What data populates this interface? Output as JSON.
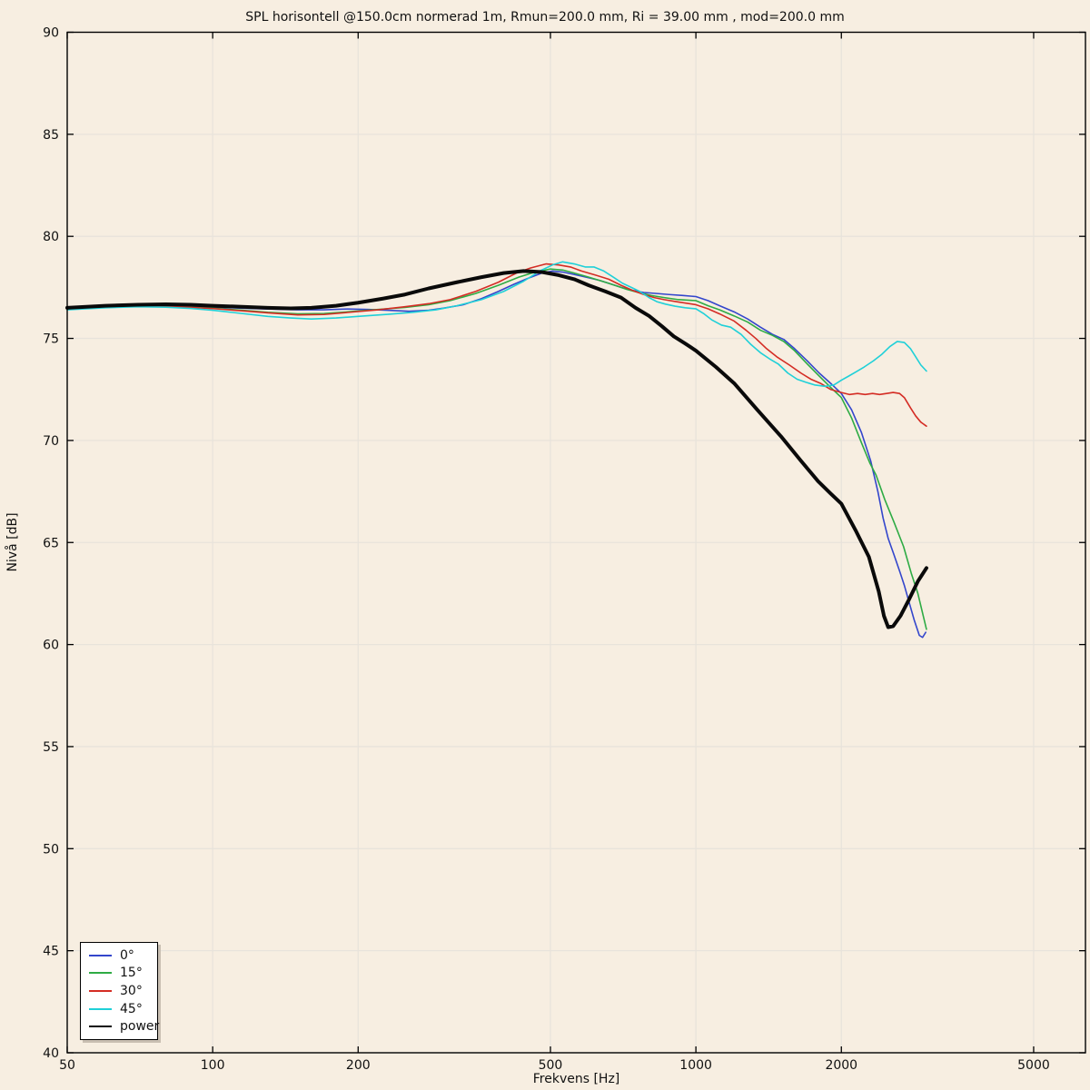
{
  "figure": {
    "background": "#f7eee1",
    "grid_color": "#e8e3db",
    "axis_color": "#000000",
    "text_color": "#111111",
    "legend_background": "#ffffff"
  },
  "chart_data": {
    "type": "line",
    "title": "SPL horisontell @150.0cm normerad 1m, Rmun=200.0 mm, Ri = 39.00 mm , mod=200.0 mm",
    "xlabel": "Frekvens [Hz]",
    "ylabel": "Nivå [dB]",
    "x_scale": "log",
    "xlim": [
      50,
      6400
    ],
    "ylim": [
      40,
      90
    ],
    "x_ticks": [
      50,
      100,
      200,
      500,
      1000,
      2000,
      5000
    ],
    "y_ticks": [
      40,
      45,
      50,
      55,
      60,
      65,
      70,
      75,
      80,
      85,
      90
    ],
    "grid": true,
    "legend_position": "lower left",
    "series": [
      {
        "name": "0°",
        "slug": "0deg",
        "color": "#3346cc",
        "width": 1.6,
        "points": [
          [
            50,
            76.45
          ],
          [
            60,
            76.55
          ],
          [
            70,
            76.6
          ],
          [
            80,
            76.6
          ],
          [
            90,
            76.57
          ],
          [
            100,
            76.53
          ],
          [
            115,
            76.48
          ],
          [
            130,
            76.44
          ],
          [
            150,
            76.4
          ],
          [
            170,
            76.4
          ],
          [
            190,
            76.44
          ],
          [
            210,
            76.42
          ],
          [
            230,
            76.38
          ],
          [
            255,
            76.33
          ],
          [
            280,
            76.38
          ],
          [
            300,
            76.48
          ],
          [
            330,
            76.65
          ],
          [
            360,
            76.95
          ],
          [
            390,
            77.3
          ],
          [
            420,
            77.65
          ],
          [
            450,
            77.95
          ],
          [
            480,
            78.2
          ],
          [
            505,
            78.3
          ],
          [
            530,
            78.25
          ],
          [
            555,
            78.15
          ],
          [
            580,
            78.05
          ],
          [
            605,
            77.95
          ],
          [
            630,
            77.85
          ],
          [
            660,
            77.7
          ],
          [
            700,
            77.5
          ],
          [
            740,
            77.35
          ],
          [
            780,
            77.25
          ],
          [
            830,
            77.2
          ],
          [
            880,
            77.15
          ],
          [
            940,
            77.1
          ],
          [
            1000,
            77.05
          ],
          [
            1060,
            76.85
          ],
          [
            1120,
            76.6
          ],
          [
            1200,
            76.3
          ],
          [
            1280,
            75.95
          ],
          [
            1360,
            75.55
          ],
          [
            1440,
            75.2
          ],
          [
            1520,
            74.95
          ],
          [
            1600,
            74.5
          ],
          [
            1700,
            73.9
          ],
          [
            1800,
            73.3
          ],
          [
            1900,
            72.8
          ],
          [
            2000,
            72.3
          ],
          [
            2100,
            71.5
          ],
          [
            2200,
            70.4
          ],
          [
            2300,
            69.0
          ],
          [
            2380,
            67.5
          ],
          [
            2440,
            66.2
          ],
          [
            2500,
            65.2
          ],
          [
            2570,
            64.4
          ],
          [
            2640,
            63.6
          ],
          [
            2700,
            62.9
          ],
          [
            2760,
            62.1
          ],
          [
            2830,
            61.2
          ],
          [
            2900,
            60.45
          ],
          [
            2945,
            60.35
          ],
          [
            2990,
            60.6
          ]
        ]
      },
      {
        "name": "15°",
        "slug": "15deg",
        "color": "#2eab44",
        "width": 1.6,
        "points": [
          [
            50,
            76.45
          ],
          [
            60,
            76.55
          ],
          [
            70,
            76.6
          ],
          [
            80,
            76.58
          ],
          [
            90,
            76.53
          ],
          [
            100,
            76.48
          ],
          [
            115,
            76.38
          ],
          [
            130,
            76.28
          ],
          [
            150,
            76.2
          ],
          [
            170,
            76.22
          ],
          [
            190,
            76.3
          ],
          [
            220,
            76.42
          ],
          [
            250,
            76.52
          ],
          [
            280,
            76.65
          ],
          [
            310,
            76.85
          ],
          [
            350,
            77.2
          ],
          [
            390,
            77.6
          ],
          [
            430,
            78.0
          ],
          [
            465,
            78.25
          ],
          [
            500,
            78.4
          ],
          [
            530,
            78.35
          ],
          [
            560,
            78.2
          ],
          [
            600,
            78.0
          ],
          [
            640,
            77.8
          ],
          [
            680,
            77.6
          ],
          [
            720,
            77.4
          ],
          [
            760,
            77.25
          ],
          [
            810,
            77.1
          ],
          [
            860,
            77.0
          ],
          [
            920,
            76.9
          ],
          [
            1000,
            76.85
          ],
          [
            1060,
            76.6
          ],
          [
            1120,
            76.4
          ],
          [
            1200,
            76.1
          ],
          [
            1280,
            75.8
          ],
          [
            1360,
            75.4
          ],
          [
            1440,
            75.15
          ],
          [
            1520,
            74.85
          ],
          [
            1600,
            74.4
          ],
          [
            1700,
            73.75
          ],
          [
            1800,
            73.15
          ],
          [
            1900,
            72.6
          ],
          [
            2000,
            72.1
          ],
          [
            2100,
            71.1
          ],
          [
            2200,
            69.9
          ],
          [
            2290,
            68.9
          ],
          [
            2360,
            68.3
          ],
          [
            2460,
            67.1
          ],
          [
            2570,
            66.0
          ],
          [
            2690,
            64.8
          ],
          [
            2790,
            63.5
          ],
          [
            2880,
            62.5
          ],
          [
            2955,
            61.4
          ],
          [
            3000,
            60.75
          ]
        ]
      },
      {
        "name": "30°",
        "slug": "30deg",
        "color": "#d42c24",
        "width": 1.6,
        "points": [
          [
            50,
            76.45
          ],
          [
            60,
            76.55
          ],
          [
            70,
            76.6
          ],
          [
            80,
            76.58
          ],
          [
            90,
            76.52
          ],
          [
            100,
            76.46
          ],
          [
            115,
            76.35
          ],
          [
            130,
            76.25
          ],
          [
            150,
            76.15
          ],
          [
            170,
            76.17
          ],
          [
            190,
            76.27
          ],
          [
            220,
            76.4
          ],
          [
            250,
            76.55
          ],
          [
            280,
            76.7
          ],
          [
            310,
            76.9
          ],
          [
            350,
            77.3
          ],
          [
            390,
            77.75
          ],
          [
            425,
            78.2
          ],
          [
            455,
            78.45
          ],
          [
            490,
            78.65
          ],
          [
            520,
            78.6
          ],
          [
            550,
            78.5
          ],
          [
            580,
            78.3
          ],
          [
            620,
            78.1
          ],
          [
            660,
            77.9
          ],
          [
            700,
            77.6
          ],
          [
            740,
            77.35
          ],
          [
            780,
            77.15
          ],
          [
            820,
            77.0
          ],
          [
            860,
            76.9
          ],
          [
            910,
            76.8
          ],
          [
            1000,
            76.65
          ],
          [
            1060,
            76.45
          ],
          [
            1120,
            76.2
          ],
          [
            1200,
            75.85
          ],
          [
            1270,
            75.4
          ],
          [
            1330,
            75.0
          ],
          [
            1400,
            74.5
          ],
          [
            1470,
            74.1
          ],
          [
            1560,
            73.7
          ],
          [
            1650,
            73.3
          ],
          [
            1730,
            73.0
          ],
          [
            1810,
            72.8
          ],
          [
            1900,
            72.5
          ],
          [
            2000,
            72.35
          ],
          [
            2080,
            72.25
          ],
          [
            2160,
            72.3
          ],
          [
            2240,
            72.25
          ],
          [
            2320,
            72.3
          ],
          [
            2400,
            72.25
          ],
          [
            2480,
            72.3
          ],
          [
            2560,
            72.35
          ],
          [
            2640,
            72.3
          ],
          [
            2700,
            72.1
          ],
          [
            2780,
            71.6
          ],
          [
            2850,
            71.2
          ],
          [
            2920,
            70.9
          ],
          [
            3000,
            70.7
          ]
        ]
      },
      {
        "name": "45°",
        "slug": "45deg",
        "color": "#1fd0d8",
        "width": 1.6,
        "points": [
          [
            50,
            76.4
          ],
          [
            60,
            76.5
          ],
          [
            70,
            76.55
          ],
          [
            80,
            76.53
          ],
          [
            90,
            76.47
          ],
          [
            100,
            76.38
          ],
          [
            115,
            76.22
          ],
          [
            130,
            76.08
          ],
          [
            145,
            76.0
          ],
          [
            160,
            75.95
          ],
          [
            180,
            76.0
          ],
          [
            200,
            76.08
          ],
          [
            230,
            76.18
          ],
          [
            260,
            76.28
          ],
          [
            290,
            76.4
          ],
          [
            320,
            76.6
          ],
          [
            360,
            76.9
          ],
          [
            400,
            77.3
          ],
          [
            440,
            77.8
          ],
          [
            475,
            78.3
          ],
          [
            505,
            78.6
          ],
          [
            530,
            78.75
          ],
          [
            560,
            78.65
          ],
          [
            590,
            78.5
          ],
          [
            615,
            78.5
          ],
          [
            645,
            78.3
          ],
          [
            675,
            78.0
          ],
          [
            705,
            77.7
          ],
          [
            735,
            77.5
          ],
          [
            765,
            77.3
          ],
          [
            800,
            77.0
          ],
          [
            830,
            76.8
          ],
          [
            865,
            76.68
          ],
          [
            905,
            76.58
          ],
          [
            950,
            76.5
          ],
          [
            1000,
            76.45
          ],
          [
            1040,
            76.2
          ],
          [
            1080,
            75.9
          ],
          [
            1130,
            75.65
          ],
          [
            1180,
            75.55
          ],
          [
            1240,
            75.2
          ],
          [
            1300,
            74.7
          ],
          [
            1360,
            74.3
          ],
          [
            1420,
            74.0
          ],
          [
            1480,
            73.75
          ],
          [
            1550,
            73.3
          ],
          [
            1620,
            73.0
          ],
          [
            1690,
            72.85
          ],
          [
            1760,
            72.72
          ],
          [
            1850,
            72.65
          ],
          [
            1930,
            72.72
          ],
          [
            2000,
            72.95
          ],
          [
            2070,
            73.15
          ],
          [
            2140,
            73.35
          ],
          [
            2230,
            73.6
          ],
          [
            2330,
            73.9
          ],
          [
            2420,
            74.2
          ],
          [
            2520,
            74.6
          ],
          [
            2610,
            74.85
          ],
          [
            2700,
            74.8
          ],
          [
            2780,
            74.5
          ],
          [
            2850,
            74.1
          ],
          [
            2920,
            73.7
          ],
          [
            3000,
            73.4
          ]
        ]
      },
      {
        "name": "power",
        "slug": "power",
        "color": "#0a0a0a",
        "width": 4,
        "points": [
          [
            50,
            76.5
          ],
          [
            60,
            76.6
          ],
          [
            70,
            76.65
          ],
          [
            80,
            76.67
          ],
          [
            90,
            76.65
          ],
          [
            100,
            76.6
          ],
          [
            115,
            76.55
          ],
          [
            130,
            76.5
          ],
          [
            145,
            76.47
          ],
          [
            160,
            76.5
          ],
          [
            180,
            76.6
          ],
          [
            200,
            76.75
          ],
          [
            225,
            76.95
          ],
          [
            250,
            77.15
          ],
          [
            280,
            77.45
          ],
          [
            320,
            77.75
          ],
          [
            360,
            78.0
          ],
          [
            400,
            78.2
          ],
          [
            440,
            78.3
          ],
          [
            480,
            78.25
          ],
          [
            520,
            78.1
          ],
          [
            560,
            77.9
          ],
          [
            600,
            77.6
          ],
          [
            650,
            77.3
          ],
          [
            700,
            77.0
          ],
          [
            750,
            76.5
          ],
          [
            800,
            76.1
          ],
          [
            850,
            75.6
          ],
          [
            900,
            75.1
          ],
          [
            950,
            74.75
          ],
          [
            1000,
            74.4
          ],
          [
            1100,
            73.6
          ],
          [
            1200,
            72.8
          ],
          [
            1340,
            71.5
          ],
          [
            1500,
            70.2
          ],
          [
            1650,
            69.0
          ],
          [
            1790,
            68.0
          ],
          [
            1900,
            67.4
          ],
          [
            2000,
            66.9
          ],
          [
            2140,
            65.6
          ],
          [
            2280,
            64.3
          ],
          [
            2390,
            62.6
          ],
          [
            2450,
            61.4
          ],
          [
            2500,
            60.85
          ],
          [
            2560,
            60.9
          ],
          [
            2650,
            61.4
          ],
          [
            2760,
            62.2
          ],
          [
            2880,
            63.1
          ],
          [
            3000,
            63.75
          ]
        ]
      }
    ]
  }
}
